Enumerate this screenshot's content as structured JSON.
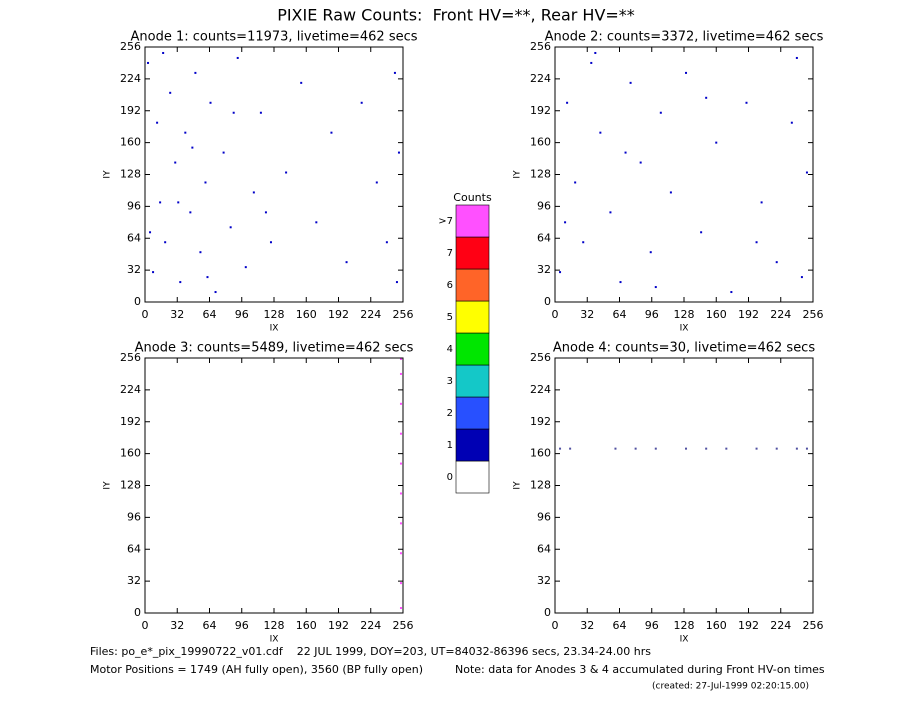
{
  "header": {
    "title": "PIXIE Raw Counts:  Front HV=**, Rear HV=**"
  },
  "chart_data": [
    {
      "type": "scatter",
      "title": "Anode 1: counts=11973, livetime=462 secs",
      "x_label": "IX",
      "y_label": "IY",
      "xlim": [
        0,
        256
      ],
      "ylim": [
        0,
        256
      ],
      "xticks": [
        0,
        32,
        64,
        96,
        128,
        160,
        192,
        224,
        256
      ],
      "yticks": [
        0,
        32,
        64,
        96,
        128,
        160,
        192,
        224,
        256
      ],
      "series": [
        {
          "color": "#0000c8",
          "x": [
            3,
            8,
            12,
            15,
            20,
            25,
            30,
            35,
            40,
            45,
            50,
            55,
            60,
            65,
            70,
            78,
            85,
            92,
            100,
            108,
            115,
            125,
            140,
            155,
            170,
            185,
            200,
            215,
            230,
            240,
            248,
            252,
            5,
            18,
            33,
            47,
            62,
            88,
            120,
            250
          ],
          "y": [
            240,
            30,
            180,
            100,
            60,
            210,
            140,
            20,
            170,
            90,
            230,
            50,
            120,
            200,
            10,
            150,
            75,
            245,
            35,
            110,
            190,
            60,
            130,
            220,
            80,
            170,
            40,
            200,
            120,
            60,
            230,
            150,
            70,
            250,
            100,
            155,
            25,
            190,
            90,
            20
          ]
        }
      ]
    },
    {
      "type": "scatter",
      "title": "Anode 2: counts=3372, livetime=462 secs",
      "x_label": "IX",
      "y_label": "IY",
      "xlim": [
        0,
        256
      ],
      "ylim": [
        0,
        256
      ],
      "xticks": [
        0,
        32,
        64,
        96,
        128,
        160,
        192,
        224,
        256
      ],
      "yticks": [
        0,
        32,
        64,
        96,
        128,
        160,
        192,
        224,
        256
      ],
      "series": [
        {
          "color": "#0000c8",
          "x": [
            5,
            12,
            20,
            28,
            36,
            45,
            55,
            65,
            75,
            85,
            95,
            105,
            115,
            130,
            145,
            160,
            175,
            190,
            205,
            220,
            235,
            245,
            250,
            10,
            40,
            70,
            100,
            150,
            200,
            240
          ],
          "y": [
            30,
            200,
            120,
            60,
            240,
            170,
            90,
            20,
            220,
            140,
            50,
            190,
            110,
            230,
            70,
            160,
            10,
            200,
            100,
            40,
            180,
            25,
            130,
            80,
            250,
            150,
            15,
            205,
            60,
            245
          ]
        }
      ]
    },
    {
      "type": "scatter",
      "title": "Anode 3: counts=5489, livetime=462 secs",
      "x_label": "IX",
      "y_label": "IY",
      "xlim": [
        0,
        256
      ],
      "ylim": [
        0,
        256
      ],
      "xticks": [
        0,
        32,
        64,
        96,
        128,
        160,
        192,
        224,
        256
      ],
      "yticks": [
        0,
        32,
        64,
        96,
        128,
        160,
        192,
        224,
        256
      ],
      "series": [
        {
          "color": "#ff50ff",
          "x": [
            254,
            254,
            254,
            254,
            254,
            254,
            254,
            254,
            254,
            254
          ],
          "y": [
            5,
            30,
            60,
            90,
            120,
            150,
            180,
            210,
            240,
            255
          ]
        }
      ]
    },
    {
      "type": "scatter",
      "title": "Anode 4: counts=30, livetime=462 secs",
      "x_label": "IX",
      "y_label": "IY",
      "xlim": [
        0,
        256
      ],
      "ylim": [
        0,
        256
      ],
      "xticks": [
        0,
        32,
        64,
        96,
        128,
        160,
        192,
        224,
        256
      ],
      "yticks": [
        0,
        32,
        64,
        96,
        128,
        160,
        192,
        224,
        256
      ],
      "series": [
        {
          "color": "#5050a0",
          "x": [
            5,
            15,
            60,
            80,
            100,
            130,
            150,
            170,
            200,
            220,
            240,
            250
          ],
          "y": [
            165,
            165,
            165,
            165,
            165,
            165,
            165,
            165,
            165,
            165,
            165,
            165
          ]
        }
      ]
    }
  ],
  "colorbar": {
    "title": "Counts",
    "labels": [
      "0",
      "1",
      "2",
      "3",
      "4",
      "5",
      "6",
      "7",
      ">7"
    ],
    "colors": [
      "#ffffff",
      "#0000b4",
      "#2850ff",
      "#14c8c8",
      "#00e600",
      "#ffff00",
      "#ff6428",
      "#ff0014",
      "#ff50ff"
    ]
  },
  "footer": {
    "files": "Files: po_e*_pix_19990722_v01.cdf    22 JUL 1999, DOY=203, UT=84032-86396 secs, 23.34-24.00 hrs",
    "motor": "Motor Positions = 1749 (AH fully open), 3560 (BP fully open)",
    "note": "Note: data for Anodes 3 & 4 accumulated during Front HV-on times",
    "created": "(created: 27-Jul-1999 02:20:15.00)"
  }
}
